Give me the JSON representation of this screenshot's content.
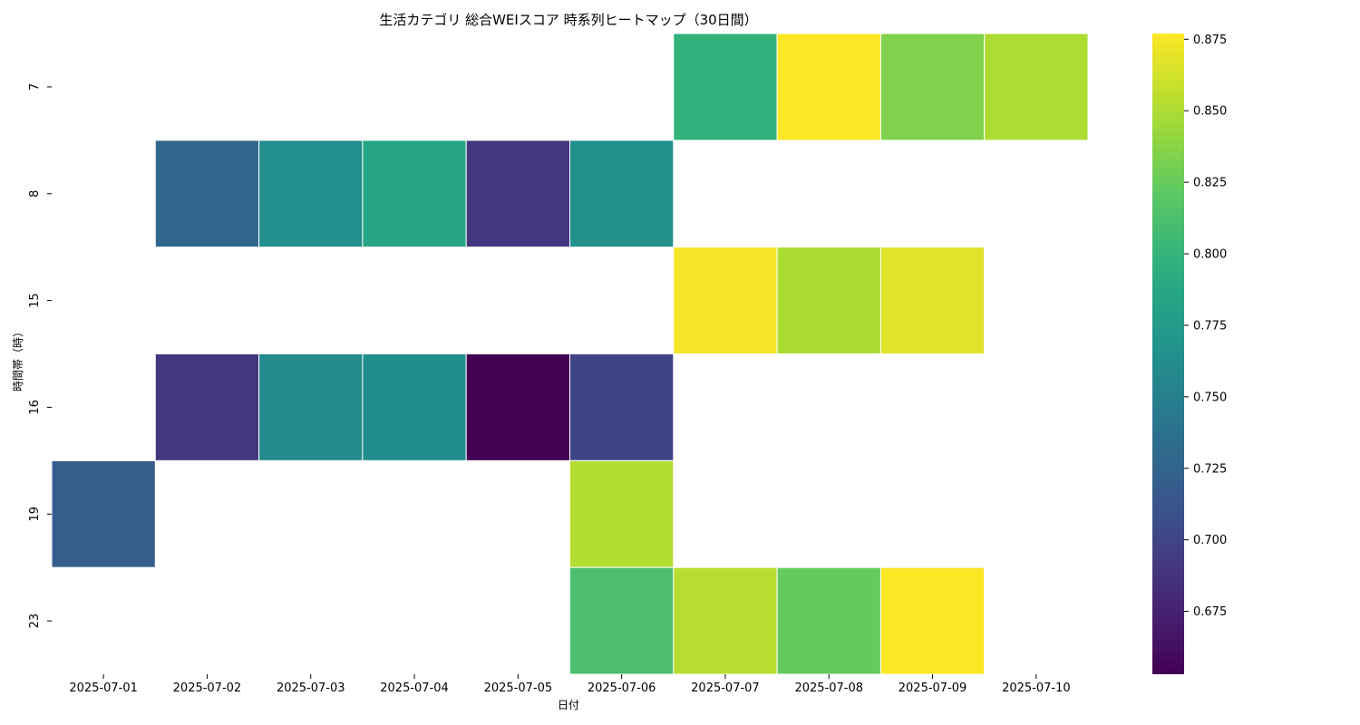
{
  "chart_data": {
    "type": "heatmap",
    "title": "生活カテゴリ 総合WEIスコア 時系列ヒートマップ（30日間）",
    "xlabel": "日付",
    "ylabel": "時間帯（時）",
    "x_categories": [
      "2025-07-01",
      "2025-07-02",
      "2025-07-03",
      "2025-07-04",
      "2025-07-05",
      "2025-07-06",
      "2025-07-07",
      "2025-07-08",
      "2025-07-09",
      "2025-07-10"
    ],
    "y_categories": [
      "7",
      "8",
      "15",
      "16",
      "19",
      "23"
    ],
    "values": [
      [
        null,
        null,
        null,
        null,
        null,
        null,
        0.799,
        0.877,
        0.834,
        0.85
      ],
      [
        null,
        0.728,
        0.763,
        0.786,
        0.69,
        0.765,
        null,
        null,
        null,
        null
      ],
      [
        null,
        null,
        null,
        null,
        null,
        null,
        0.874,
        0.849,
        0.867,
        null
      ],
      [
        null,
        0.689,
        0.76,
        0.762,
        0.653,
        0.699,
        null,
        null,
        null,
        null
      ],
      [
        0.72,
        null,
        null,
        null,
        null,
        0.852,
        null,
        null,
        null,
        null
      ],
      [
        null,
        null,
        null,
        null,
        null,
        0.812,
        0.853,
        0.824,
        0.877,
        null
      ]
    ],
    "colormap": "viridis",
    "zlim": [
      0.653,
      0.877
    ],
    "colorbar_ticks": [
      "0.675",
      "0.700",
      "0.725",
      "0.750",
      "0.775",
      "0.800",
      "0.825",
      "0.850",
      "0.875"
    ],
    "grid": false,
    "legend": "colorbar-right"
  }
}
